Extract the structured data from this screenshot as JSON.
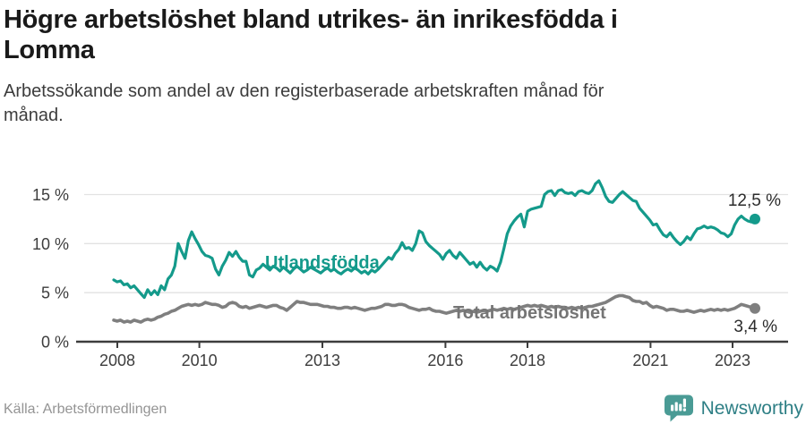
{
  "header": {
    "title_line1": "Högre arbetslöshet bland utrikes- än inrikesfödda i",
    "title_line2": "Lomma",
    "subtitle_line1": "Arbetssökande som andel av den registerbaserade arbetskraften månad för",
    "subtitle_line2": "månad."
  },
  "chart_data": {
    "type": "line",
    "unit": "%",
    "x_range": [
      "2008-01",
      "2023-10"
    ],
    "x_ticks": [
      2008,
      2010,
      2013,
      2016,
      2018,
      2021,
      2023
    ],
    "y_ticks": [
      {
        "value": 0,
        "label": "0 %"
      },
      {
        "value": 5,
        "label": "5 %"
      },
      {
        "value": 10,
        "label": "10 %"
      },
      {
        "value": 15,
        "label": "15 %"
      }
    ],
    "ylim": [
      0,
      17
    ],
    "grid": "horizontal",
    "legend_position": "inline-on-lines",
    "series": [
      {
        "name": "Utlandsfödda",
        "color": "#149a8b",
        "end_label": "12,5 %",
        "end_value": 12.5,
        "values": [
          6.3,
          6.1,
          6.2,
          5.8,
          5.9,
          5.5,
          5.7,
          5.3,
          4.9,
          4.5,
          5.3,
          4.8,
          5.2,
          4.8,
          5.7,
          5.3,
          6.4,
          6.8,
          7.7,
          10.0,
          9.2,
          8.5,
          10.3,
          11.2,
          10.5,
          9.9,
          9.2,
          8.8,
          8.7,
          8.5,
          7.4,
          6.8,
          7.7,
          8.3,
          9.1,
          8.7,
          9.2,
          8.6,
          8.2,
          8.2,
          6.8,
          6.6,
          7.3,
          7.5,
          7.9,
          7.6,
          7.3,
          7.7,
          7.5,
          7.2,
          7.6,
          7.3,
          7.0,
          7.4,
          7.7,
          7.4,
          7.1,
          7.3,
          7.6,
          7.4,
          7.2,
          7.0,
          7.3,
          7.5,
          7.2,
          7.4,
          7.1,
          6.9,
          7.2,
          7.4,
          7.2,
          7.5,
          7.3,
          7.0,
          7.2,
          6.9,
          7.3,
          7.1,
          7.4,
          7.8,
          8.2,
          8.6,
          8.4,
          9.0,
          9.4,
          10.1,
          9.5,
          9.6,
          9.3,
          10.0,
          11.3,
          11.1,
          10.2,
          9.8,
          9.5,
          9.2,
          8.9,
          8.4,
          9.0,
          9.3,
          8.8,
          8.5,
          9.1,
          8.7,
          8.3,
          7.9,
          8.1,
          7.6,
          8.1,
          7.6,
          7.3,
          7.7,
          7.5,
          7.2,
          8.1,
          9.5,
          11.0,
          11.8,
          12.3,
          12.7,
          13.0,
          11.7,
          13.3,
          13.5,
          13.6,
          13.7,
          13.8,
          15.0,
          15.3,
          15.4,
          14.9,
          15.4,
          15.5,
          15.2,
          15.1,
          15.2,
          14.9,
          15.3,
          15.4,
          15.2,
          15.1,
          15.4,
          16.1,
          16.4,
          15.7,
          14.8,
          14.3,
          14.2,
          14.6,
          15.0,
          15.3,
          15.0,
          14.7,
          14.4,
          14.3,
          13.6,
          13.2,
          12.8,
          12.4,
          11.9,
          12.0,
          11.4,
          10.9,
          10.7,
          11.1,
          10.6,
          10.2,
          9.9,
          10.2,
          10.7,
          10.4,
          11.0,
          11.5,
          11.6,
          11.8,
          11.6,
          11.7,
          11.6,
          11.4,
          11.1,
          11.0,
          10.7,
          11.0,
          11.9,
          12.5,
          12.8,
          12.5,
          12.3,
          12.2,
          12.5
        ]
      },
      {
        "name": "Total arbetslöshet",
        "color": "#7f7f7f",
        "end_label": "3,4 %",
        "end_value": 3.4,
        "values": [
          2.2,
          2.1,
          2.2,
          2.0,
          2.1,
          2.0,
          2.2,
          2.1,
          2.0,
          2.2,
          2.3,
          2.2,
          2.3,
          2.5,
          2.6,
          2.8,
          2.9,
          3.1,
          3.2,
          3.4,
          3.6,
          3.7,
          3.8,
          3.7,
          3.8,
          3.7,
          3.8,
          4.0,
          3.9,
          3.8,
          3.8,
          3.7,
          3.5,
          3.6,
          3.9,
          4.0,
          3.9,
          3.6,
          3.5,
          3.6,
          3.4,
          3.5,
          3.6,
          3.7,
          3.6,
          3.5,
          3.6,
          3.7,
          3.7,
          3.5,
          3.4,
          3.2,
          3.5,
          3.8,
          4.1,
          4.0,
          4.0,
          3.9,
          3.8,
          3.8,
          3.8,
          3.7,
          3.6,
          3.6,
          3.5,
          3.5,
          3.4,
          3.4,
          3.5,
          3.5,
          3.4,
          3.5,
          3.4,
          3.3,
          3.2,
          3.3,
          3.4,
          3.4,
          3.5,
          3.6,
          3.8,
          3.8,
          3.7,
          3.7,
          3.8,
          3.8,
          3.7,
          3.5,
          3.4,
          3.3,
          3.2,
          3.3,
          3.3,
          3.4,
          3.2,
          3.1,
          3.1,
          3.0,
          2.9,
          3.0,
          3.1,
          3.2,
          3.1,
          3.2,
          3.1,
          3.0,
          3.1,
          3.0,
          3.1,
          3.2,
          3.1,
          3.2,
          3.3,
          3.2,
          3.3,
          3.4,
          3.3,
          3.4,
          3.3,
          3.4,
          3.5,
          3.6,
          3.7,
          3.6,
          3.7,
          3.6,
          3.7,
          3.6,
          3.5,
          3.6,
          3.5,
          3.6,
          3.5,
          3.5,
          3.4,
          3.5,
          3.4,
          3.5,
          3.4,
          3.5,
          3.6,
          3.6,
          3.7,
          3.8,
          3.9,
          4.0,
          4.2,
          4.4,
          4.6,
          4.7,
          4.7,
          4.6,
          4.5,
          4.2,
          4.1,
          4.1,
          3.9,
          4.0,
          3.7,
          3.5,
          3.6,
          3.5,
          3.4,
          3.2,
          3.3,
          3.3,
          3.2,
          3.1,
          3.1,
          3.2,
          3.1,
          3.0,
          3.1,
          3.2,
          3.1,
          3.2,
          3.3,
          3.2,
          3.3,
          3.2,
          3.3,
          3.2,
          3.3,
          3.4,
          3.6,
          3.8,
          3.7,
          3.6,
          3.5,
          3.4
        ]
      }
    ]
  },
  "footer": {
    "source": "Källa: Arbetsförmedlingen",
    "brand": "Newsworthy"
  }
}
